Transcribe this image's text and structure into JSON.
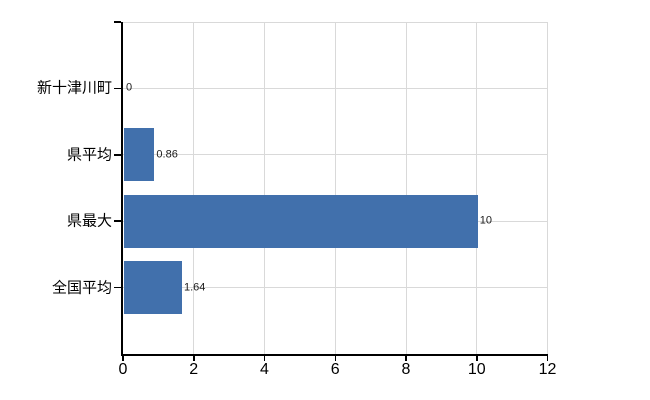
{
  "chart_data": {
    "type": "bar",
    "orientation": "horizontal",
    "title": "",
    "xlabel": "",
    "ylabel": "",
    "categories": [
      "新十津川町",
      "県平均",
      "県最大",
      "全国平均"
    ],
    "values": [
      0,
      0.86,
      10,
      1.64
    ],
    "value_labels": [
      "0",
      "0.86",
      "10",
      "1.64"
    ],
    "xlim": [
      0,
      12
    ],
    "x_tick_values": [
      0,
      2,
      4,
      6,
      8,
      10,
      12
    ],
    "x_tick_labels": [
      "0",
      "2",
      "4",
      "6",
      "8",
      "10",
      "12"
    ],
    "grid": "on",
    "legend": "none",
    "colors": {
      "bar": "#4170ac",
      "grid": "#d9d9d9",
      "axis": "#000000",
      "category_label": "#000000",
      "x_tick_label": "#000000",
      "value_label": "#1a1a1a",
      "background": "#ffffff"
    }
  }
}
